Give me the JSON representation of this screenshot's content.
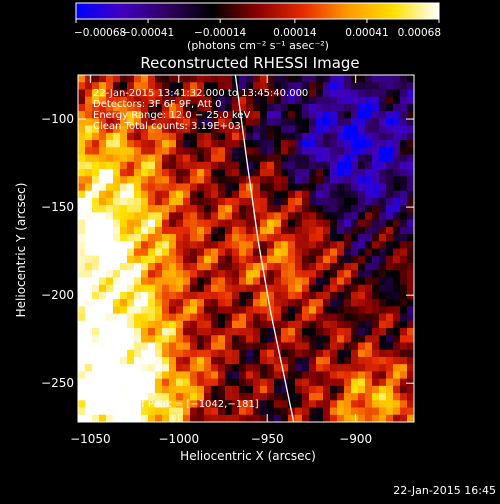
{
  "chart_data": {
    "type": "heatmap",
    "title": "Reconstructed RHESSI Image",
    "xlabel": "Heliocentric X (arcsec)",
    "ylabel": "Heliocentric Y (arcsec)",
    "xlim": [
      -1057,
      -867
    ],
    "ylim": [
      -272,
      -75
    ],
    "x_ticks": [
      -1050,
      -1000,
      -950,
      -900
    ],
    "x_tick_labels": [
      "−1050",
      "−1000",
      "−950",
      "−900"
    ],
    "y_ticks": [
      -100,
      -150,
      -200,
      -250
    ],
    "y_tick_labels": [
      "−100",
      "−150",
      "−200",
      "−250"
    ],
    "colorbar": {
      "range": [
        -0.00068,
        0.00068
      ],
      "ticks": [
        -0.00068,
        -0.00041,
        -0.00014,
        0.00014,
        0.00041,
        0.00068
      ],
      "tick_labels": [
        "−0.00068",
        "−0.00041",
        "−0.00014",
        "0.00014",
        "0.00041",
        "0.00068"
      ],
      "units_label": "(photons cm⁻² s⁻¹ asec⁻²)",
      "colors": [
        "#0000ff",
        "#4000c0",
        "#300060",
        "#000000",
        "#8a0000",
        "#e52a00",
        "#ff9a00",
        "#ffe000",
        "#ffffff"
      ]
    },
    "annotations": [
      "22-Jan-2015 13:41:32.000 to 13:45:40.000",
      "Detectors: 3F 6F 9F, Att 0",
      "Energy Range: 12.0 − 25.0 keV",
      "Clean    Total counts: 3.19E+03"
    ],
    "peak_label": "Position of Peak = [−1042,−181]",
    "peak": [
      -1042,
      -181
    ],
    "limb_curve": [
      [
        -968,
        -75
      ],
      [
        -962,
        -120
      ],
      [
        -955,
        -170
      ],
      [
        -948,
        -210
      ],
      [
        -940,
        -248
      ],
      [
        -935,
        -272
      ]
    ]
  },
  "footer_timestamp": "22-Jan-2015 16:45"
}
